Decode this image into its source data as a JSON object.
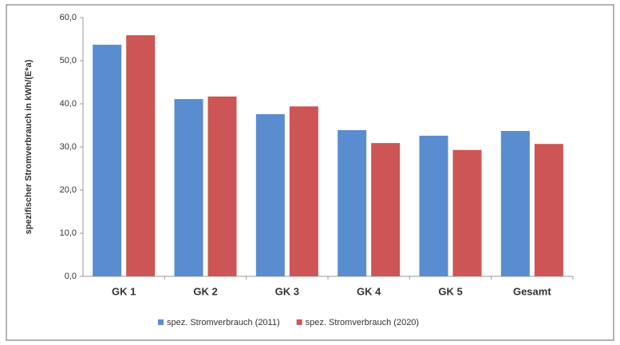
{
  "chart_data": {
    "type": "bar",
    "y_label": "spezifischer Stromverbrauch in kWh/(E*a)",
    "categories": [
      "GK 1",
      "GK 2",
      "GK 3",
      "GK 4",
      "GK 5",
      "Gesamt"
    ],
    "series": [
      {
        "name": "spez. Stromverbrauch (2011)",
        "color": "#5a8dd0",
        "values": [
          53.7,
          41.1,
          37.6,
          33.9,
          32.6,
          33.7
        ]
      },
      {
        "name": "spez. Stromverbrauch (2020)",
        "color": "#cd5555",
        "values": [
          55.9,
          41.7,
          39.4,
          30.9,
          29.3,
          30.7
        ]
      }
    ],
    "ylim": [
      0,
      60
    ],
    "yticks": [
      {
        "value": 0,
        "label": "0,0"
      },
      {
        "value": 10,
        "label": "10,0"
      },
      {
        "value": 20,
        "label": "20,0"
      },
      {
        "value": 30,
        "label": "30,0"
      },
      {
        "value": 40,
        "label": "40,0"
      },
      {
        "value": 50,
        "label": "50,0"
      },
      {
        "value": 60,
        "label": "60,0"
      }
    ],
    "grid": false
  }
}
